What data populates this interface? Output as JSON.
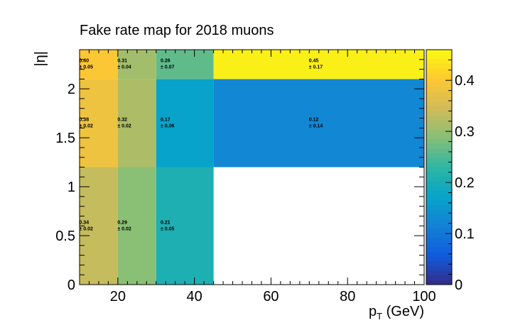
{
  "chart_data": {
    "type": "heatmap",
    "title": "Fake rate map for 2018 muons",
    "xlabel": "p",
    "xlabel_sub": "T",
    "xlabel_unit": " (GeV)",
    "ylabel": "|η|",
    "xlim": [
      10,
      100
    ],
    "ylim": [
      0,
      2.4
    ],
    "zlim": [
      0,
      0.46
    ],
    "x_ticks": [
      20,
      40,
      60,
      80,
      100
    ],
    "y_ticks": [
      0,
      0.5,
      1,
      1.5,
      2
    ],
    "y_tick_labels": [
      "0",
      "0.5",
      "1",
      "1.5",
      "2"
    ],
    "z_ticks": [
      0,
      0.1,
      0.2,
      0.3,
      0.4
    ],
    "z_tick_labels": [
      "0",
      "0.1",
      "0.2",
      "0.3",
      "0.4"
    ],
    "x_edges": [
      10,
      20,
      30,
      45,
      100
    ],
    "y_edges": [
      0,
      1.2,
      2.1,
      2.4
    ],
    "cells": [
      {
        "x_bin": 0,
        "y_bin": 0,
        "value": 0.34,
        "label": "0.34",
        "error_label": "± 0.02"
      },
      {
        "x_bin": 1,
        "y_bin": 0,
        "value": 0.29,
        "label": "0.29",
        "error_label": "± 0.02"
      },
      {
        "x_bin": 2,
        "y_bin": 0,
        "value": 0.21,
        "label": "0.21",
        "error_label": "± 0.05"
      },
      {
        "x_bin": 0,
        "y_bin": 1,
        "value": 0.38,
        "label": "0.38",
        "error_label": "± 0.02"
      },
      {
        "x_bin": 1,
        "y_bin": 1,
        "value": 0.32,
        "label": "0.32",
        "error_label": "± 0.02"
      },
      {
        "x_bin": 2,
        "y_bin": 1,
        "value": 0.17,
        "label": "0.17",
        "error_label": "± 0.06"
      },
      {
        "x_bin": 3,
        "y_bin": 1,
        "value": 0.12,
        "label": "0.12",
        "error_label": "± 0.14"
      },
      {
        "x_bin": 0,
        "y_bin": 2,
        "value": 0.4,
        "label": "0.40",
        "error_label": "± 0.05"
      },
      {
        "x_bin": 1,
        "y_bin": 2,
        "value": 0.31,
        "label": "0.31",
        "error_label": "± 0.04"
      },
      {
        "x_bin": 2,
        "y_bin": 2,
        "value": 0.26,
        "label": "0.26",
        "error_label": "± 0.07"
      },
      {
        "x_bin": 3,
        "y_bin": 2,
        "value": 0.45,
        "label": "0.45",
        "error_label": "± 0.17"
      }
    ],
    "colorscale": [
      "#352a87",
      "#0f5cdd",
      "#1481d6",
      "#06a4ca",
      "#2eb7a4",
      "#87bf77",
      "#d1bb59",
      "#fec832",
      "#f9fb0e"
    ],
    "grid": false
  }
}
